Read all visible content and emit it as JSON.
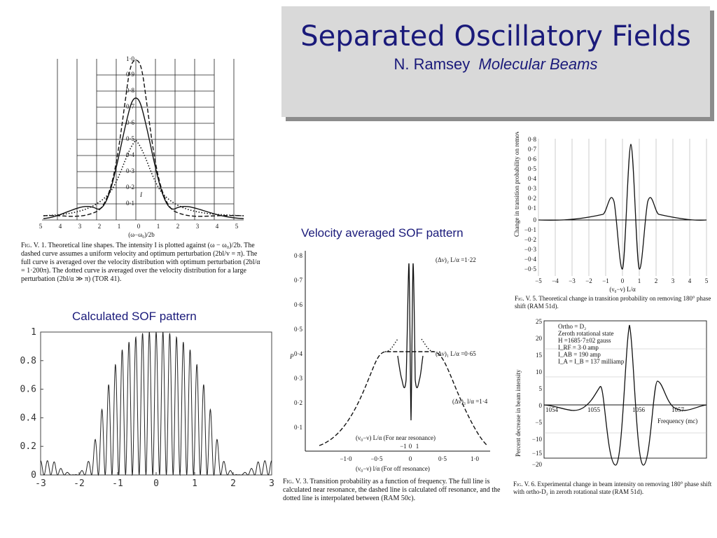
{
  "slide": {
    "title": "Separated Oscillatory Fields",
    "subtitle_author": "N. Ramsey",
    "subtitle_book": "Molecular Beams",
    "title_bg": "#d9d9d9",
    "title_color": "#1a1a7a"
  },
  "captions": {
    "calculated": "Calculated SOF pattern",
    "velocity_averaged": "Velocity averaged SOF pattern"
  },
  "fig_v1": {
    "y_ticks": [
      "1·0",
      "0·9",
      "0·8",
      "0·7",
      "0·6",
      "0·5",
      "0·4",
      "0·3",
      "0·2",
      "0·1"
    ],
    "x_ticks": [
      "5",
      "4",
      "3",
      "2",
      "1",
      "0",
      "1",
      "2",
      "3",
      "4",
      "5"
    ],
    "y_label": "I",
    "x_label": "(ω−ω₀)/2b",
    "caption_lead": "Fig. V. 1.",
    "caption_body": "Theoretical line shapes. The intensity I is plotted against (ω − ω₀)/2b. The dashed curve assumes a uniform velocity and optimum perturbation (2bl/v = π). The full curve is averaged over the velocity distribution with optimum perturbation (2bl/α = 1·200π). The dotted curve is averaged over the velocity distribution for a large perturbation (2bl/α ≫ π) (TOR 41)."
  },
  "fig_v3": {
    "y_ticks": [
      "0·8",
      "0·7",
      "0·6",
      "0·5",
      "0·4",
      "0·3",
      "0·2",
      "0·1"
    ],
    "y_label": "P",
    "annot_1": "(Δν)₂ L/α =1·22",
    "annot_2": "(Δν)₁ L/α =0·65",
    "annot_3": "(Δν)₃ l/α =1·4",
    "near_label": "(ν₀−ν) L/α (For near resonance)",
    "near_ticks": [
      "−1",
      "0",
      "1"
    ],
    "off_ticks": [
      "−1·0",
      "−0·5",
      "0",
      "0·5",
      "1·0"
    ],
    "off_label": "(ν₀−ν) l/α (For off resonance)",
    "caption_lead": "Fig. V. 3.",
    "caption_body": "Transition probability as a function of frequency. The full line is calculated near resonance, the dashed line is calculated off resonance, and the dotted line is interpolated between (RAM 50c)."
  },
  "fig_v5": {
    "y_ticks": [
      "0·8",
      "0·7",
      "0·6",
      "0·5",
      "0·4",
      "0·3",
      "0·2",
      "0·1",
      "0",
      "−0·1",
      "−0·2",
      "−0·3",
      "−0·4",
      "−0·5"
    ],
    "x_ticks": [
      "−5",
      "−4",
      "−3",
      "−2",
      "−1",
      "0",
      "1",
      "2",
      "3",
      "4",
      "5"
    ],
    "x_label": "(ν₀−ν) L/α",
    "y_label": "Change in transition probability on removing 180° phase shift",
    "caption_lead": "Fig. V. 5.",
    "caption_body": "Theoretical change in transition probability on removing 180° phase shift (RAM 51d)."
  },
  "fig_v6": {
    "y_ticks": [
      "25",
      "20",
      "15",
      "10",
      "5",
      "0",
      "−5",
      "−10",
      "−15",
      "−20"
    ],
    "freq_marks": [
      "1054",
      "1055",
      "1056",
      "1057"
    ],
    "legend_lines": [
      "Ortho = D₂",
      "Zeroth rotational state",
      "H =1685·7±02 gauss",
      "I_RF = 3·0 amp",
      "I_AB = 190 amp",
      "I_A = I_B = 137 milliamp"
    ],
    "x_label": "Frequency (mc)",
    "y_label": "Percent decrease in beam intensity",
    "caption_lead": "Fig. V. 6.",
    "caption_body": "Experimental change in beam intensity on removing 180° phase shift with ortho-D₂ in zeroth rotational state (RAM 51d)."
  },
  "chart_data": {
    "type": "line",
    "title": "Calculated SOF pattern",
    "xlim": [
      -3,
      3
    ],
    "ylim": [
      0,
      1
    ],
    "x_ticks": [
      "-3",
      "-2",
      "-1",
      "0",
      "1",
      "2",
      "3"
    ],
    "y_ticks": [
      "0",
      "0.2",
      "0.4",
      "0.6",
      "0.8",
      "1"
    ],
    "grid": false,
    "series_color": "#222222",
    "series": [
      {
        "x": [
          -3,
          -2.875,
          -2.75,
          -2.625,
          -2.5,
          -2.375,
          -2.25,
          -2.125,
          -2,
          -1.875,
          -1.75,
          -1.625,
          -1.5,
          -1.375,
          -1.25,
          -1.125,
          -1,
          -0.875,
          -0.75,
          -0.625,
          -0.5,
          -0.375,
          -0.25,
          -0.125,
          0,
          0.125,
          0.25,
          0.375,
          0.5,
          0.625,
          0.75,
          0.875,
          1,
          1.125,
          1.25,
          1.375,
          1.5,
          1.625,
          1.75,
          1.875,
          2,
          2.125,
          2.25,
          2.375,
          2.5,
          2.625,
          2.75,
          2.875,
          3
        ],
        "values": [
          0.1,
          0.1,
          0.1,
          0.09,
          0.05,
          0.03,
          0.01,
          0,
          0.01,
          0.05,
          0.1,
          0.2,
          0.35,
          0.5,
          0.62,
          0.72,
          0.82,
          0.88,
          0.92,
          0.95,
          0.97,
          0.99,
          1,
          1,
          1,
          1,
          1,
          0.99,
          0.97,
          0.95,
          0.92,
          0.88,
          0.82,
          0.72,
          0.62,
          0.5,
          0.35,
          0.2,
          0.1,
          0.05,
          0.01,
          0,
          0.01,
          0.03,
          0.05,
          0.09,
          0.1,
          0.1,
          0.1
        ]
      }
    ]
  }
}
